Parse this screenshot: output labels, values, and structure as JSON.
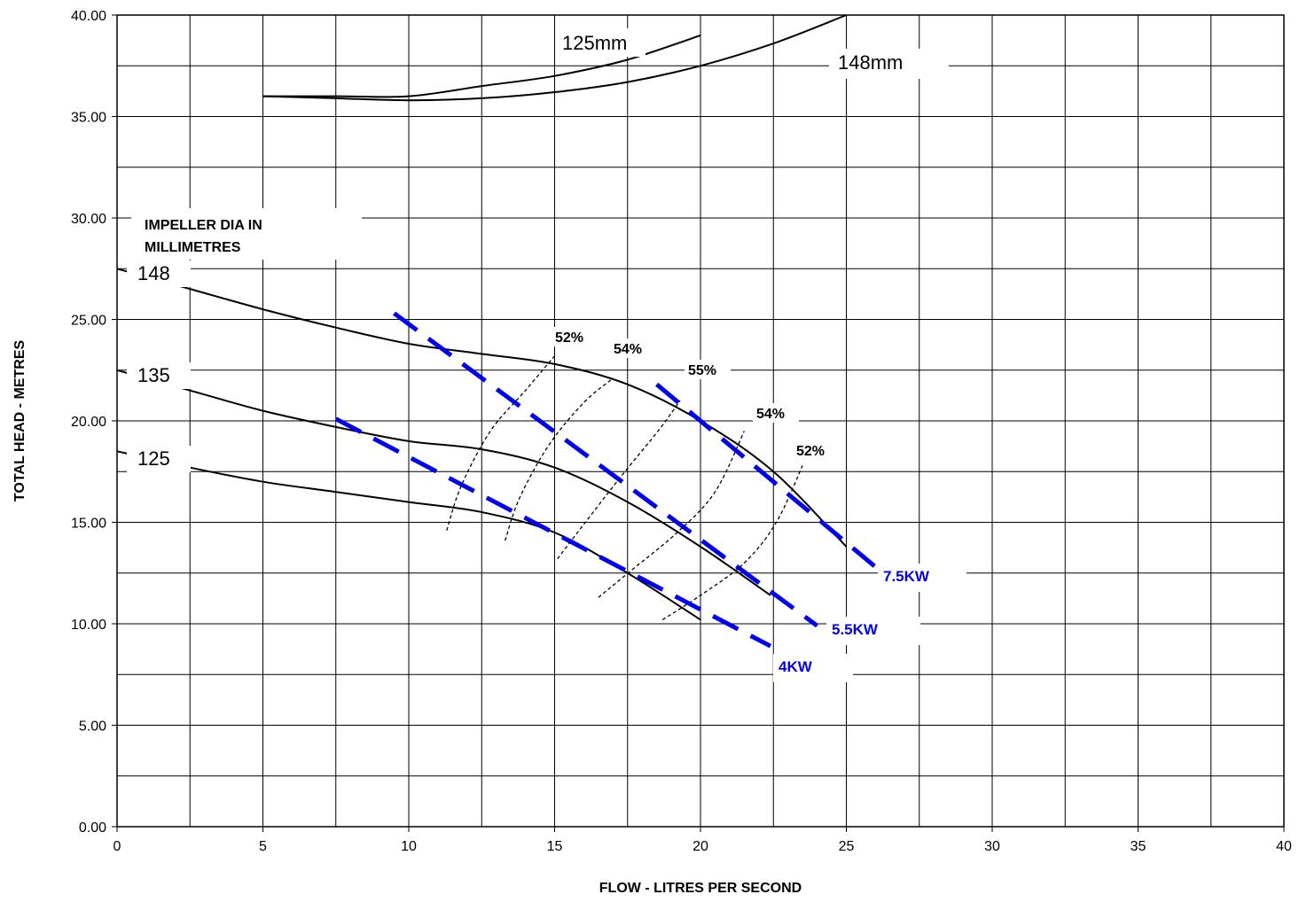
{
  "chart_data": {
    "type": "line",
    "xlabel": "FLOW  -  LITRES PER SECOND",
    "ylabel": "TOTAL HEAD  -  METRES",
    "xlim": [
      0,
      40
    ],
    "ylim": [
      0,
      40
    ],
    "x_ticks": [
      "0",
      "5",
      "10",
      "15",
      "20",
      "25",
      "30",
      "35",
      "40"
    ],
    "y_ticks": [
      "0.00",
      "5.00",
      "10.00",
      "15.00",
      "20.00",
      "25.00",
      "30.00",
      "35.00",
      "40.00"
    ],
    "grid": true,
    "colors": {
      "curve": "#000000",
      "power": "#0000ee",
      "grid": "#000000"
    },
    "impeller_heading": [
      "IMPELLER DIA IN",
      "MILLIMETRES"
    ],
    "head_curves": [
      {
        "name": "148",
        "points": [
          [
            0,
            27.5
          ],
          [
            2.5,
            26.5
          ],
          [
            5,
            25.5
          ],
          [
            7.5,
            24.6
          ],
          [
            10,
            23.8
          ],
          [
            12.5,
            23.3
          ],
          [
            15,
            22.8
          ],
          [
            17.5,
            21.8
          ],
          [
            20,
            20.0
          ],
          [
            22.5,
            17.5
          ],
          [
            25,
            13.8
          ]
        ]
      },
      {
        "name": "135",
        "points": [
          [
            0,
            22.5
          ],
          [
            2.5,
            21.5
          ],
          [
            5,
            20.5
          ],
          [
            7.5,
            19.7
          ],
          [
            10,
            19.0
          ],
          [
            12.5,
            18.6
          ],
          [
            15,
            17.7
          ],
          [
            17.5,
            16.0
          ],
          [
            20,
            13.8
          ],
          [
            22.4,
            11.4
          ]
        ]
      },
      {
        "name": "125",
        "points": [
          [
            0,
            18.5
          ],
          [
            2.5,
            17.7
          ],
          [
            5,
            17.0
          ],
          [
            7.5,
            16.5
          ],
          [
            10,
            16.0
          ],
          [
            12.5,
            15.5
          ],
          [
            15,
            14.5
          ],
          [
            17.5,
            12.5
          ],
          [
            20,
            10.2
          ]
        ]
      }
    ],
    "npsh_curves": [
      {
        "name": "125mm",
        "points": [
          [
            5,
            36.0
          ],
          [
            7.5,
            36.0
          ],
          [
            10,
            36.0
          ],
          [
            12.5,
            36.5
          ],
          [
            15,
            37.0
          ],
          [
            17.5,
            37.8
          ],
          [
            20,
            39.0
          ]
        ]
      },
      {
        "name": "148mm",
        "points": [
          [
            5,
            36.0
          ],
          [
            7.5,
            35.9
          ],
          [
            10,
            35.8
          ],
          [
            12.5,
            35.9
          ],
          [
            15,
            36.2
          ],
          [
            17.5,
            36.7
          ],
          [
            20,
            37.5
          ],
          [
            22.5,
            38.6
          ],
          [
            25,
            40.0
          ]
        ]
      }
    ],
    "efficiency_curves": [
      {
        "name": "52%",
        "points": [
          [
            11.3,
            14.6
          ],
          [
            11.8,
            16.8
          ],
          [
            12.8,
            19.5
          ],
          [
            14.0,
            21.5
          ],
          [
            15.0,
            23.2
          ]
        ]
      },
      {
        "name": "54%",
        "points": [
          [
            13.3,
            14.1
          ],
          [
            13.8,
            16.2
          ],
          [
            14.8,
            18.8
          ],
          [
            16.0,
            20.9
          ],
          [
            17.0,
            22.1
          ]
        ]
      },
      {
        "name": "55%",
        "points": [
          [
            15.1,
            13.2
          ],
          [
            16.0,
            14.9
          ],
          [
            17.3,
            17.3
          ],
          [
            18.6,
            19.6
          ],
          [
            19.3,
            21.0
          ]
        ]
      },
      {
        "name": "54%",
        "points": [
          [
            16.5,
            11.3
          ],
          [
            17.6,
            12.6
          ],
          [
            19.2,
            14.5
          ],
          [
            20.5,
            16.5
          ],
          [
            21.5,
            19.5
          ]
        ]
      },
      {
        "name": "52%",
        "points": [
          [
            18.7,
            10.2
          ],
          [
            20.0,
            11.4
          ],
          [
            21.5,
            13.0
          ],
          [
            22.6,
            15.0
          ],
          [
            23.5,
            17.8
          ]
        ]
      }
    ],
    "power_lines": [
      {
        "name": "7.5KW",
        "points": [
          [
            18.5,
            21.8
          ],
          [
            26.0,
            12.8
          ]
        ]
      },
      {
        "name": "5.5KW",
        "points": [
          [
            9.5,
            25.3
          ],
          [
            24.0,
            9.9
          ]
        ]
      },
      {
        "name": "4KW",
        "points": [
          [
            7.5,
            20.1
          ],
          [
            22.4,
            8.9
          ]
        ]
      }
    ]
  }
}
